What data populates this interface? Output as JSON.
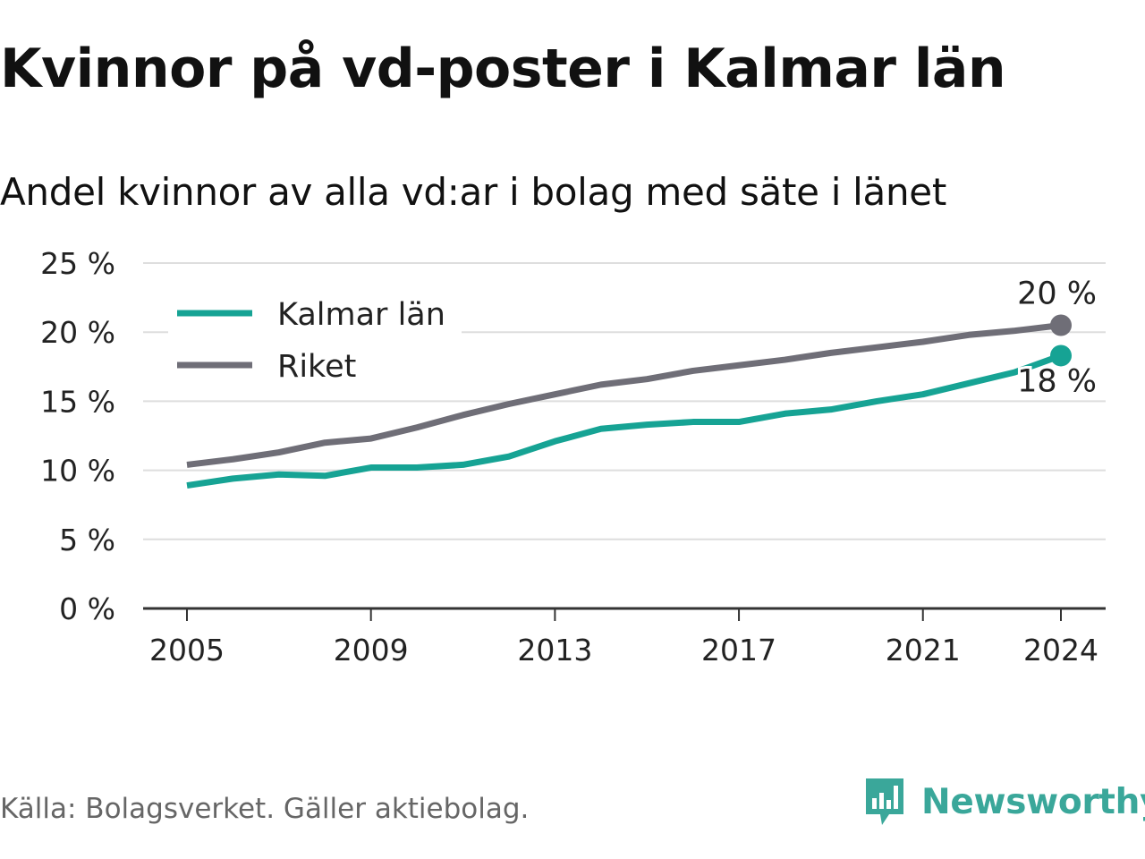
{
  "header": {
    "title": "Kvinnor på vd-poster i Kalmar län",
    "subtitle": "Andel kvinnor av alla vd:ar i bolag med säte i länet"
  },
  "chart_data": {
    "type": "line",
    "x": [
      2005,
      2006,
      2007,
      2008,
      2009,
      2010,
      2011,
      2012,
      2013,
      2014,
      2015,
      2016,
      2017,
      2018,
      2019,
      2020,
      2021,
      2022,
      2023,
      2024
    ],
    "x_ticks": [
      "2005",
      "2009",
      "2013",
      "2017",
      "2021",
      "2024"
    ],
    "y_ticks": [
      0,
      5,
      10,
      15,
      20,
      25
    ],
    "y_tick_labels": [
      "0 %",
      "5 %",
      "10 %",
      "15 %",
      "20 %",
      "25 %"
    ],
    "ylim": [
      0,
      25
    ],
    "xlim": [
      2004,
      2025
    ],
    "grid": true,
    "legend_position": "top-left",
    "series": [
      {
        "name": "Kalmar län",
        "color": "#16a394",
        "values": [
          8.9,
          9.4,
          9.7,
          9.6,
          10.2,
          10.2,
          10.4,
          11.0,
          12.1,
          13.0,
          13.3,
          13.5,
          13.5,
          14.1,
          14.4,
          15.0,
          15.5,
          16.3,
          17.1,
          18.3
        ],
        "end_label": "18 %"
      },
      {
        "name": "Riket",
        "color": "#6f6e77",
        "values": [
          10.4,
          10.8,
          11.3,
          12.0,
          12.3,
          13.1,
          14.0,
          14.8,
          15.5,
          16.2,
          16.6,
          17.2,
          17.6,
          18.0,
          18.5,
          18.9,
          19.3,
          19.8,
          20.1,
          20.5
        ],
        "end_label": "20 %"
      }
    ]
  },
  "footer": {
    "source": "Källa: Bolagsverket. Gäller aktiebolag.",
    "brand": "Newsworthy",
    "brand_color": "#3aa79a",
    "brand_icon": "newsworthy-logo-icon"
  }
}
